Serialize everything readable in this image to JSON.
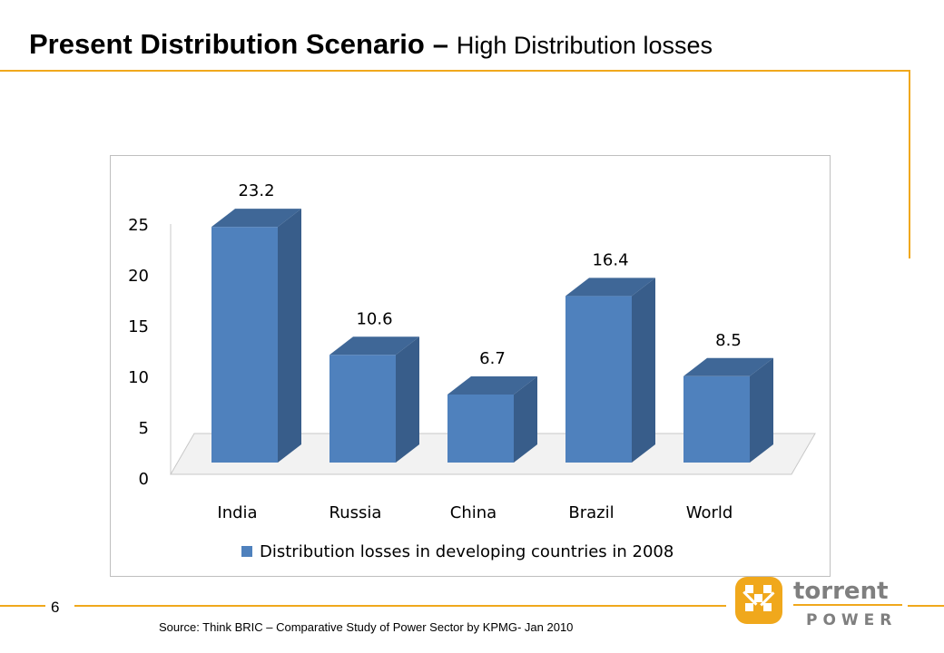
{
  "slide": {
    "title_main": "Present Distribution Scenario",
    "title_separator": "–",
    "title_sub": "High Distribution losses",
    "page_number": "6",
    "source": "Source: Think BRIC – Comparative Study of Power Sector by KPMG- Jan 2010"
  },
  "logo": {
    "word1": "torrent",
    "word2": "POWER",
    "icon": "torrent-power-logo-icon",
    "color": "#f0a81c"
  },
  "colors": {
    "accent": "#f0a81c",
    "bar_front": "#4f81bd",
    "bar_side": "#385d8a",
    "bar_top": "#3f6797"
  },
  "chart_data": {
    "type": "bar",
    "three_d": true,
    "categories": [
      "India",
      "Russia",
      "China",
      "Brazil",
      "World"
    ],
    "series": [
      {
        "name": "Distribution losses in developing countries in 2008",
        "values": [
          23.2,
          10.6,
          6.7,
          16.4,
          8.5
        ],
        "color": "#4f81bd"
      }
    ],
    "data_labels": [
      "23.2",
      "10.6",
      "6.7",
      "16.4",
      "8.5"
    ],
    "y_ticks": [
      "0",
      "5",
      "10",
      "15",
      "20",
      "25"
    ],
    "ylim": [
      0,
      25
    ],
    "legend_position": "bottom",
    "grid": false
  }
}
